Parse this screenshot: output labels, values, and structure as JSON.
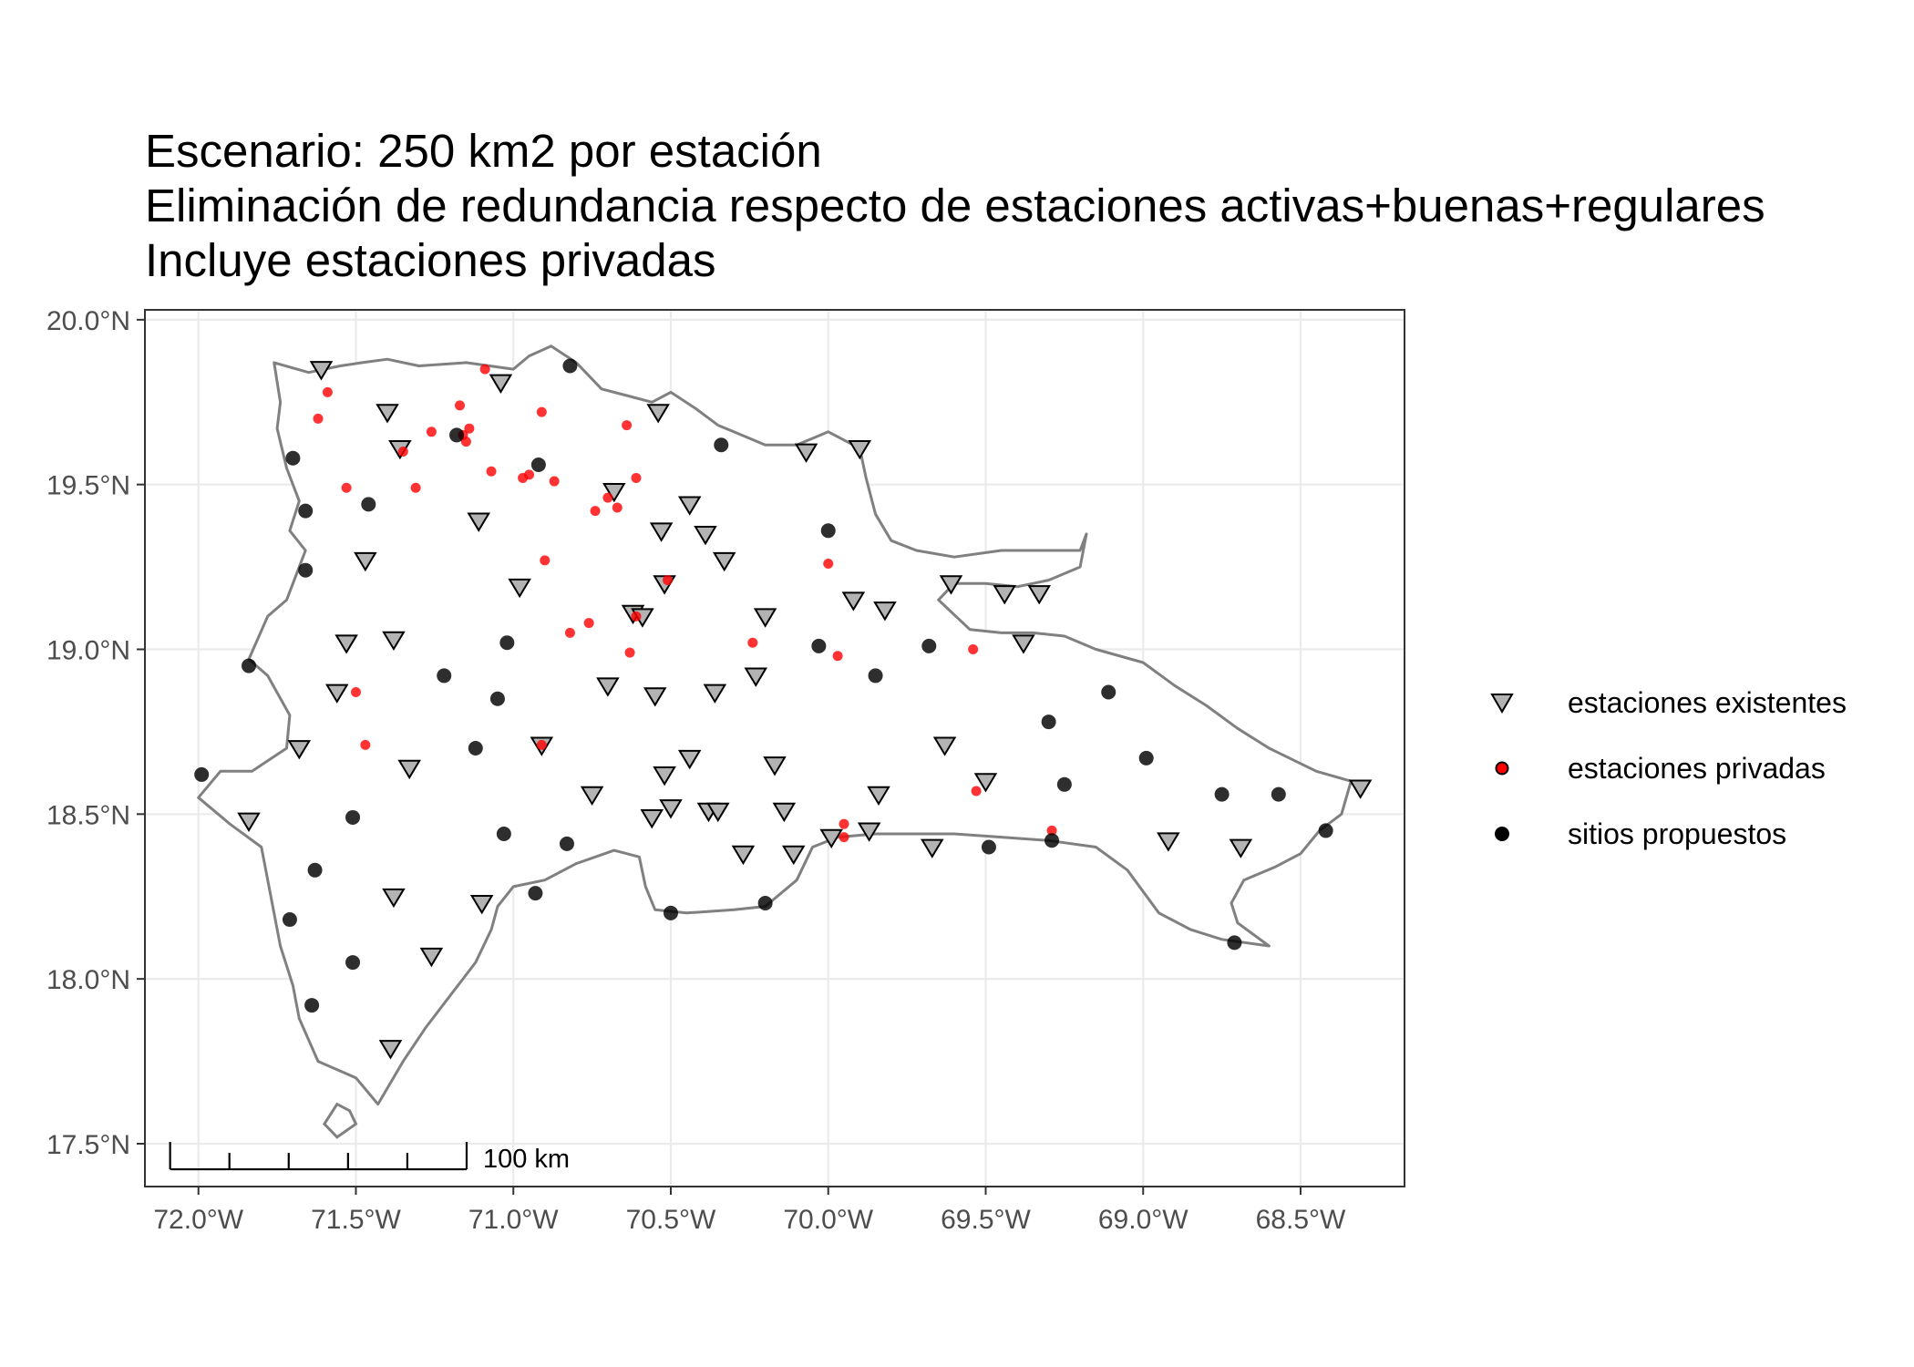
{
  "title": {
    "lines": [
      "Escenario: 250 km2 por estación",
      "Eliminación de redundancia respecto de estaciones activas+buenas+regulares",
      "Incluye estaciones privadas"
    ]
  },
  "legend": {
    "items": [
      {
        "label": "estaciones existentes",
        "shape": "triangle-down",
        "fill": "#b3b3b3",
        "stroke": "#000000"
      },
      {
        "label": "estaciones privadas",
        "shape": "circle",
        "fill": "#ff0000",
        "stroke": "#000000"
      },
      {
        "label": "sitios propuestos",
        "shape": "circle",
        "fill": "#000000",
        "stroke": "#000000"
      }
    ]
  },
  "scalebar": {
    "label": "100 km",
    "km": 100
  },
  "colors": {
    "coastline": "#808080",
    "grid": "#ebebeb",
    "panel_border": "#333333",
    "existing_fill": "#b3b3b3",
    "private_fill": "#ff0000",
    "proposed_fill": "#000000"
  },
  "chart_data": {
    "type": "map",
    "projection": "longitude-latitude graticule",
    "xlim": [
      -72.17,
      -68.17
    ],
    "ylim": [
      17.37,
      20.03
    ],
    "x_ticks": [
      {
        "value": -72.0,
        "label": "72.0°W"
      },
      {
        "value": -71.5,
        "label": "71.5°W"
      },
      {
        "value": -71.0,
        "label": "71.0°W"
      },
      {
        "value": -70.5,
        "label": "70.5°W"
      },
      {
        "value": -70.0,
        "label": "70.0°W"
      },
      {
        "value": -69.5,
        "label": "69.5°W"
      },
      {
        "value": -69.0,
        "label": "69.0°W"
      },
      {
        "value": -68.5,
        "label": "68.5°W"
      }
    ],
    "y_ticks": [
      {
        "value": 17.5,
        "label": "17.5°N"
      },
      {
        "value": 18.0,
        "label": "18.0°N"
      },
      {
        "value": 18.5,
        "label": "18.5°N"
      },
      {
        "value": 19.0,
        "label": "19.0°N"
      },
      {
        "value": 19.5,
        "label": "19.5°N"
      },
      {
        "value": 20.0,
        "label": "20.0°N"
      }
    ],
    "grid": true,
    "legend_position": "right",
    "coastline": [
      [
        -71.76,
        19.87
      ],
      [
        -71.65,
        19.84
      ],
      [
        -71.55,
        19.86
      ],
      [
        -71.48,
        19.87
      ],
      [
        -71.4,
        19.88
      ],
      [
        -71.3,
        19.86
      ],
      [
        -71.15,
        19.87
      ],
      [
        -71.0,
        19.85
      ],
      [
        -70.95,
        19.89
      ],
      [
        -70.88,
        19.92
      ],
      [
        -70.8,
        19.87
      ],
      [
        -70.72,
        19.79
      ],
      [
        -70.64,
        19.77
      ],
      [
        -70.56,
        19.75
      ],
      [
        -70.5,
        19.78
      ],
      [
        -70.42,
        19.73
      ],
      [
        -70.35,
        19.68
      ],
      [
        -70.3,
        19.66
      ],
      [
        -70.2,
        19.62
      ],
      [
        -70.1,
        19.62
      ],
      [
        -70.0,
        19.66
      ],
      [
        -69.9,
        19.61
      ],
      [
        -69.88,
        19.52
      ],
      [
        -69.85,
        19.41
      ],
      [
        -69.8,
        19.33
      ],
      [
        -69.72,
        19.3
      ],
      [
        -69.6,
        19.28
      ],
      [
        -69.45,
        19.3
      ],
      [
        -69.3,
        19.3
      ],
      [
        -69.2,
        19.3
      ],
      [
        -69.18,
        19.35
      ],
      [
        -69.2,
        19.25
      ],
      [
        -69.3,
        19.21
      ],
      [
        -69.4,
        19.19
      ],
      [
        -69.5,
        19.2
      ],
      [
        -69.6,
        19.2
      ],
      [
        -69.65,
        19.15
      ],
      [
        -69.55,
        19.06
      ],
      [
        -69.45,
        19.05
      ],
      [
        -69.35,
        19.05
      ],
      [
        -69.25,
        19.04
      ],
      [
        -69.15,
        19.0
      ],
      [
        -69.0,
        18.96
      ],
      [
        -68.9,
        18.89
      ],
      [
        -68.8,
        18.83
      ],
      [
        -68.7,
        18.76
      ],
      [
        -68.6,
        18.7
      ],
      [
        -68.45,
        18.63
      ],
      [
        -68.34,
        18.6
      ],
      [
        -68.37,
        18.5
      ],
      [
        -68.44,
        18.45
      ],
      [
        -68.5,
        18.38
      ],
      [
        -68.58,
        18.34
      ],
      [
        -68.68,
        18.3
      ],
      [
        -68.72,
        18.23
      ],
      [
        -68.7,
        18.17
      ],
      [
        -68.6,
        18.1
      ],
      [
        -68.75,
        18.12
      ],
      [
        -68.85,
        18.15
      ],
      [
        -68.95,
        18.2
      ],
      [
        -69.05,
        18.33
      ],
      [
        -69.15,
        18.4
      ],
      [
        -69.3,
        18.42
      ],
      [
        -69.45,
        18.43
      ],
      [
        -69.6,
        18.44
      ],
      [
        -69.7,
        18.44
      ],
      [
        -69.85,
        18.44
      ],
      [
        -69.97,
        18.43
      ],
      [
        -70.05,
        18.4
      ],
      [
        -70.1,
        18.3
      ],
      [
        -70.2,
        18.22
      ],
      [
        -70.3,
        18.21
      ],
      [
        -70.45,
        18.2
      ],
      [
        -70.55,
        18.21
      ],
      [
        -70.58,
        18.28
      ],
      [
        -70.6,
        18.37
      ],
      [
        -70.68,
        18.39
      ],
      [
        -70.8,
        18.35
      ],
      [
        -70.9,
        18.3
      ],
      [
        -71.0,
        18.28
      ],
      [
        -71.05,
        18.22
      ],
      [
        -71.07,
        18.15
      ],
      [
        -71.12,
        18.05
      ],
      [
        -71.2,
        17.95
      ],
      [
        -71.28,
        17.85
      ],
      [
        -71.35,
        17.75
      ],
      [
        -71.43,
        17.62
      ],
      [
        -71.5,
        17.7
      ],
      [
        -71.62,
        17.75
      ],
      [
        -71.68,
        17.88
      ],
      [
        -71.7,
        17.98
      ],
      [
        -71.74,
        18.1
      ],
      [
        -71.77,
        18.25
      ],
      [
        -71.8,
        18.4
      ],
      [
        -71.9,
        18.47
      ],
      [
        -72.0,
        18.55
      ],
      [
        -71.93,
        18.63
      ],
      [
        -71.83,
        18.63
      ],
      [
        -71.72,
        18.7
      ],
      [
        -71.71,
        18.8
      ],
      [
        -71.78,
        18.92
      ],
      [
        -71.84,
        18.97
      ],
      [
        -71.78,
        19.1
      ],
      [
        -71.72,
        19.15
      ],
      [
        -71.66,
        19.3
      ],
      [
        -71.71,
        19.36
      ],
      [
        -71.68,
        19.45
      ],
      [
        -71.72,
        19.55
      ],
      [
        -71.75,
        19.67
      ],
      [
        -71.74,
        19.75
      ],
      [
        -71.76,
        19.87
      ]
    ],
    "small_islands": [
      [
        [
          -71.56,
          17.62
        ],
        [
          -71.52,
          17.6
        ],
        [
          -71.5,
          17.56
        ],
        [
          -71.56,
          17.52
        ],
        [
          -71.6,
          17.56
        ],
        [
          -71.56,
          17.62
        ]
      ]
    ],
    "existing_stations": [
      [
        -71.61,
        19.85
      ],
      [
        -71.4,
        19.72
      ],
      [
        -71.36,
        19.61
      ],
      [
        -71.04,
        19.81
      ],
      [
        -71.11,
        19.39
      ],
      [
        -71.47,
        19.27
      ],
      [
        -71.53,
        19.02
      ],
      [
        -71.38,
        19.03
      ],
      [
        -71.56,
        18.87
      ],
      [
        -71.68,
        18.7
      ],
      [
        -71.84,
        18.48
      ],
      [
        -71.33,
        18.64
      ],
      [
        -71.38,
        18.25
      ],
      [
        -71.1,
        18.23
      ],
      [
        -71.26,
        18.07
      ],
      [
        -71.39,
        17.79
      ],
      [
        -70.98,
        19.19
      ],
      [
        -70.91,
        18.71
      ],
      [
        -70.68,
        19.48
      ],
      [
        -70.53,
        19.36
      ],
      [
        -70.44,
        19.44
      ],
      [
        -70.39,
        19.35
      ],
      [
        -70.33,
        19.27
      ],
      [
        -70.52,
        19.2
      ],
      [
        -70.62,
        19.11
      ],
      [
        -70.59,
        19.1
      ],
      [
        -70.7,
        18.89
      ],
      [
        -70.55,
        18.86
      ],
      [
        -70.36,
        18.87
      ],
      [
        -70.23,
        18.92
      ],
      [
        -70.2,
        19.1
      ],
      [
        -70.75,
        18.56
      ],
      [
        -70.52,
        18.62
      ],
      [
        -70.44,
        18.67
      ],
      [
        -70.56,
        18.49
      ],
      [
        -70.5,
        18.52
      ],
      [
        -70.38,
        18.51
      ],
      [
        -70.35,
        18.51
      ],
      [
        -70.17,
        18.65
      ],
      [
        -70.14,
        18.51
      ],
      [
        -70.27,
        18.38
      ],
      [
        -70.11,
        18.38
      ],
      [
        -69.99,
        18.43
      ],
      [
        -69.87,
        18.45
      ],
      [
        -69.84,
        18.56
      ],
      [
        -69.67,
        18.4
      ],
      [
        -69.63,
        18.71
      ],
      [
        -69.5,
        18.6
      ],
      [
        -70.54,
        19.72
      ],
      [
        -70.07,
        19.6
      ],
      [
        -69.9,
        19.61
      ],
      [
        -69.92,
        19.15
      ],
      [
        -69.82,
        19.12
      ],
      [
        -69.61,
        19.2
      ],
      [
        -69.44,
        19.17
      ],
      [
        -69.33,
        19.17
      ],
      [
        -69.38,
        19.02
      ],
      [
        -68.92,
        18.42
      ],
      [
        -68.69,
        18.4
      ],
      [
        -68.31,
        18.58
      ]
    ],
    "private_stations": [
      [
        -71.59,
        19.78
      ],
      [
        -71.62,
        19.7
      ],
      [
        -71.53,
        19.49
      ],
      [
        -71.35,
        19.6
      ],
      [
        -71.31,
        19.49
      ],
      [
        -71.26,
        19.66
      ],
      [
        -71.17,
        19.74
      ],
      [
        -71.16,
        19.65
      ],
      [
        -71.15,
        19.63
      ],
      [
        -71.14,
        19.67
      ],
      [
        -71.09,
        19.85
      ],
      [
        -71.07,
        19.54
      ],
      [
        -70.91,
        19.72
      ],
      [
        -70.97,
        19.52
      ],
      [
        -70.95,
        19.53
      ],
      [
        -70.87,
        19.51
      ],
      [
        -70.74,
        19.42
      ],
      [
        -70.7,
        19.46
      ],
      [
        -70.67,
        19.43
      ],
      [
        -70.64,
        19.68
      ],
      [
        -70.61,
        19.52
      ],
      [
        -70.9,
        19.27
      ],
      [
        -70.82,
        19.05
      ],
      [
        -70.76,
        19.08
      ],
      [
        -70.61,
        19.1
      ],
      [
        -70.63,
        18.99
      ],
      [
        -70.51,
        19.21
      ],
      [
        -70.24,
        19.02
      ],
      [
        -70.0,
        19.26
      ],
      [
        -69.97,
        18.98
      ],
      [
        -69.54,
        19.0
      ],
      [
        -69.53,
        18.57
      ],
      [
        -69.29,
        18.45
      ],
      [
        -69.95,
        18.47
      ],
      [
        -69.95,
        18.43
      ],
      [
        -71.5,
        18.87
      ],
      [
        -71.47,
        18.71
      ],
      [
        -70.91,
        18.71
      ]
    ],
    "proposed_sites": [
      [
        -70.82,
        19.86
      ],
      [
        -71.18,
        19.65
      ],
      [
        -71.7,
        19.58
      ],
      [
        -71.66,
        19.42
      ],
      [
        -71.46,
        19.44
      ],
      [
        -71.66,
        19.24
      ],
      [
        -70.92,
        19.56
      ],
      [
        -70.34,
        19.62
      ],
      [
        -70.0,
        19.36
      ],
      [
        -71.84,
        18.95
      ],
      [
        -71.22,
        18.92
      ],
      [
        -71.02,
        19.02
      ],
      [
        -71.05,
        18.85
      ],
      [
        -71.12,
        18.7
      ],
      [
        -71.99,
        18.62
      ],
      [
        -71.51,
        18.49
      ],
      [
        -71.63,
        18.33
      ],
      [
        -71.71,
        18.18
      ],
      [
        -71.51,
        18.05
      ],
      [
        -71.64,
        17.92
      ],
      [
        -71.03,
        18.44
      ],
      [
        -70.83,
        18.41
      ],
      [
        -70.93,
        18.26
      ],
      [
        -70.5,
        18.2
      ],
      [
        -70.2,
        18.23
      ],
      [
        -70.03,
        19.01
      ],
      [
        -69.85,
        18.92
      ],
      [
        -69.68,
        19.01
      ],
      [
        -69.49,
        18.4
      ],
      [
        -69.29,
        18.42
      ],
      [
        -69.25,
        18.59
      ],
      [
        -69.3,
        18.78
      ],
      [
        -69.11,
        18.87
      ],
      [
        -68.99,
        18.67
      ],
      [
        -68.75,
        18.56
      ],
      [
        -68.57,
        18.56
      ],
      [
        -68.42,
        18.45
      ],
      [
        -68.71,
        18.11
      ]
    ]
  }
}
